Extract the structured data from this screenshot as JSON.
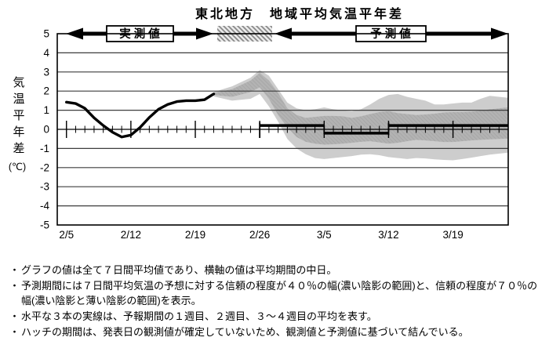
{
  "title": "東北地方　地域平均気温平年差",
  "header": {
    "observed_label": "実測値",
    "forecast_label": "予測値"
  },
  "y_axis": {
    "label_chars": [
      "気",
      "温",
      "平",
      "年",
      "差"
    ],
    "unit": "(℃)",
    "ticks": [
      5,
      4,
      3,
      2,
      1,
      0,
      -1,
      -2,
      -3,
      -4,
      -5
    ]
  },
  "x_axis": {
    "ticks": [
      "2/5",
      "2/12",
      "2/19",
      "2/26",
      "3/5",
      "3/12",
      "3/19"
    ]
  },
  "colors": {
    "band_light": "#cdcdcd",
    "band_dark": "#b3b3b3",
    "grid": "#3d3d3d",
    "line": "#000000",
    "background": "#ffffff"
  },
  "notes": {
    "bullet": "・",
    "items": [
      "グラフの値は全て７日間平均値であり、横軸の値は平均期間の中日。",
      "予測期間には７日間平均気温の予想に対する信頼の程度が４０％の幅(濃い陰影の範囲)と、信頼の程度が７０％の幅(濃い陰影と薄い陰影の範囲)を表示。",
      "水平な３本の実線は、予報期間の１週目、２週目、３～４週目の平均を表す。",
      "ハッチの期間は、発表日の観測値が確定していないため、観測値と予測値に基づいて結んでいる。"
    ]
  },
  "chart_data": {
    "type": "line",
    "title": "東北地方 地域平均気温平年差",
    "ylabel": "気温平年差(℃)",
    "ylim": [
      -5,
      5
    ],
    "x_start": "2/4",
    "x_end": "3/25",
    "grid": true,
    "observed_line": {
      "dates": [
        "2/5",
        "2/6",
        "2/7",
        "2/8",
        "2/9",
        "2/10",
        "2/11",
        "2/12",
        "2/13",
        "2/14",
        "2/15",
        "2/16",
        "2/17",
        "2/18",
        "2/19",
        "2/20",
        "2/21"
      ],
      "values": [
        1.42,
        1.35,
        1.1,
        0.6,
        0.2,
        -0.15,
        -0.4,
        -0.3,
        0.1,
        0.62,
        1.05,
        1.3,
        1.45,
        1.5,
        1.5,
        1.55,
        1.85
      ]
    },
    "hatch_period": {
      "from": "2/21",
      "to": "2/27"
    },
    "forecast_bands": {
      "dates": [
        "2/21",
        "2/23",
        "2/25",
        "2/26",
        "2/27",
        "2/28",
        "3/1",
        "3/2",
        "3/3",
        "3/4",
        "3/5",
        "3/6",
        "3/7",
        "3/8",
        "3/9",
        "3/10",
        "3/11",
        "3/12",
        "3/13",
        "3/14",
        "3/15",
        "3/16",
        "3/17",
        "3/18",
        "3/19",
        "3/20",
        "3/21",
        "3/22",
        "3/23",
        "3/25"
      ],
      "band70": {
        "confidence": "70%",
        "upper": [
          1.95,
          2.25,
          2.7,
          3.1,
          2.8,
          2.1,
          1.4,
          1.1,
          1.0,
          1.05,
          1.15,
          1.05,
          1.0,
          0.95,
          1.05,
          1.3,
          1.6,
          1.8,
          1.85,
          1.7,
          1.6,
          1.5,
          1.3,
          1.3,
          1.35,
          1.4,
          1.4,
          1.6,
          1.75,
          1.65
        ],
        "lower": [
          1.72,
          1.5,
          1.6,
          1.85,
          1.2,
          0.4,
          -0.5,
          -1.0,
          -1.3,
          -1.5,
          -1.55,
          -1.5,
          -1.45,
          -1.4,
          -1.32,
          -1.3,
          -1.35,
          -1.45,
          -1.5,
          -1.55,
          -1.5,
          -1.52,
          -1.57,
          -1.6,
          -1.62,
          -1.55,
          -1.48,
          -1.4,
          -1.32,
          -1.22
        ]
      },
      "band40": {
        "confidence": "40%",
        "upper": [
          1.9,
          2.1,
          2.55,
          2.95,
          2.55,
          1.9,
          1.1,
          0.75,
          0.6,
          0.65,
          0.7,
          0.7,
          0.68,
          0.6,
          0.68,
          0.8,
          0.9,
          0.95,
          0.85,
          0.8,
          0.75,
          0.78,
          0.82,
          0.88,
          0.9,
          0.9,
          0.92,
          0.98,
          1.05,
          1.15
        ],
        "lower": [
          1.8,
          1.7,
          1.95,
          2.2,
          1.6,
          0.75,
          0.1,
          -0.4,
          -0.65,
          -0.75,
          -0.8,
          -0.78,
          -0.75,
          -0.7,
          -0.65,
          -0.62,
          -0.68,
          -0.75,
          -0.7,
          -0.62,
          -0.55,
          -0.58,
          -0.62,
          -0.66,
          -0.66,
          -0.62,
          -0.58,
          -0.55,
          -0.52,
          -0.48
        ]
      }
    },
    "forecast_means": [
      {
        "label": "1週目",
        "from": "2/26",
        "to": "3/5",
        "value": 0.2
      },
      {
        "label": "2週目",
        "from": "3/5",
        "to": "3/12",
        "value": -0.2
      },
      {
        "label": "3～4週目",
        "from": "3/12",
        "to": "3/25",
        "value": 0.2
      }
    ],
    "boundary_ticks": [
      {
        "date": "2/26",
        "from": 0.37,
        "to": -0.45
      },
      {
        "date": "3/5",
        "from": 0.2,
        "to": -0.25
      },
      {
        "date": "3/12",
        "from": 0.35,
        "to": -0.3
      }
    ]
  }
}
